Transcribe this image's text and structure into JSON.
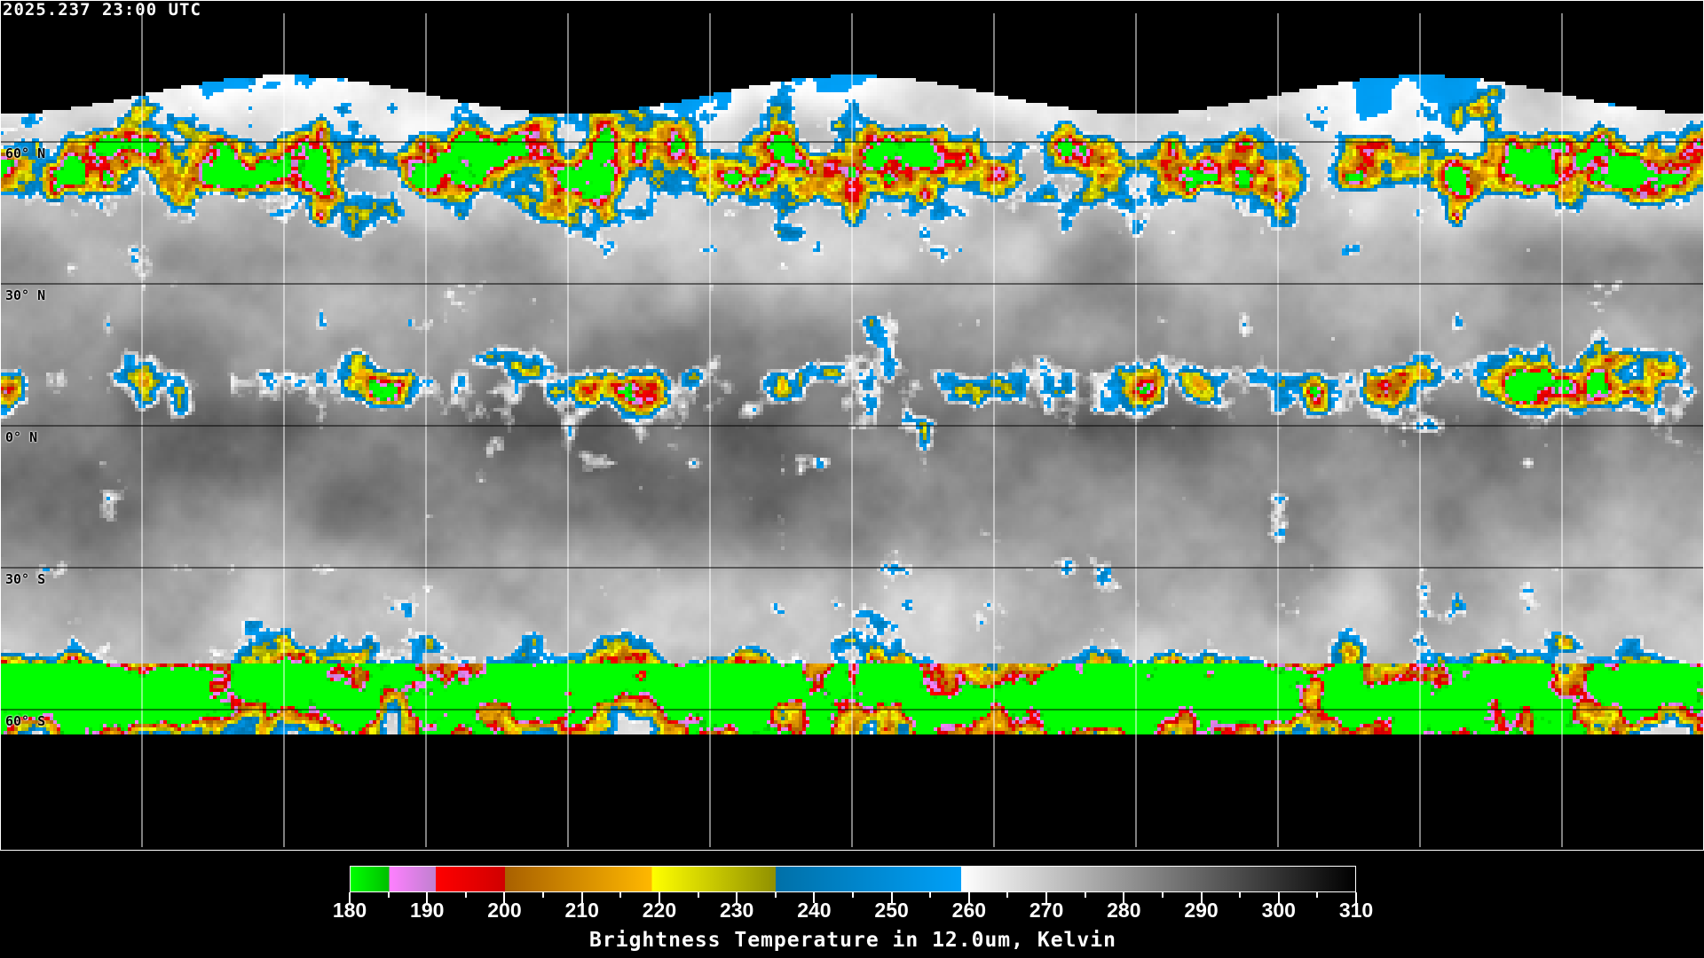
{
  "title": "2025.237 23:00 UTC",
  "map": {
    "projection": "equirectangular",
    "grid_spacing_deg": 30,
    "lat_labels": [
      "60° N",
      "30° N",
      "0° N",
      "30° S",
      "60° S"
    ],
    "lat_values": [
      60,
      30,
      0,
      -30,
      -60
    ],
    "grid_color": "#ffffff",
    "coastline_color_on_data": "#000000",
    "coastline_color_off_data": "#ffffff"
  },
  "colorbar": {
    "title": "Brightness Temperature in 12.0um, Kelvin",
    "min": 180,
    "max": 310,
    "tick_labels": [
      "180",
      "190",
      "200",
      "210",
      "220",
      "230",
      "240",
      "250",
      "260",
      "270",
      "280",
      "290",
      "300",
      "310"
    ],
    "segments": [
      {
        "from": 180,
        "to": 185,
        "start": "#00ff00",
        "end": "#00c000"
      },
      {
        "from": 185,
        "to": 191,
        "start": "#ff80ff",
        "end": "#c080d0"
      },
      {
        "from": 191,
        "to": 200,
        "start": "#ff0000",
        "end": "#d00000"
      },
      {
        "from": 200,
        "to": 219,
        "start": "#a86000",
        "end": "#ffb800"
      },
      {
        "from": 219,
        "to": 235,
        "start": "#ffff00",
        "end": "#909000"
      },
      {
        "from": 235,
        "to": 259,
        "start": "#0070a8",
        "end": "#00a0f8"
      },
      {
        "from": 259,
        "to": 310,
        "start": "#ffffff",
        "end": "#000000"
      }
    ]
  }
}
